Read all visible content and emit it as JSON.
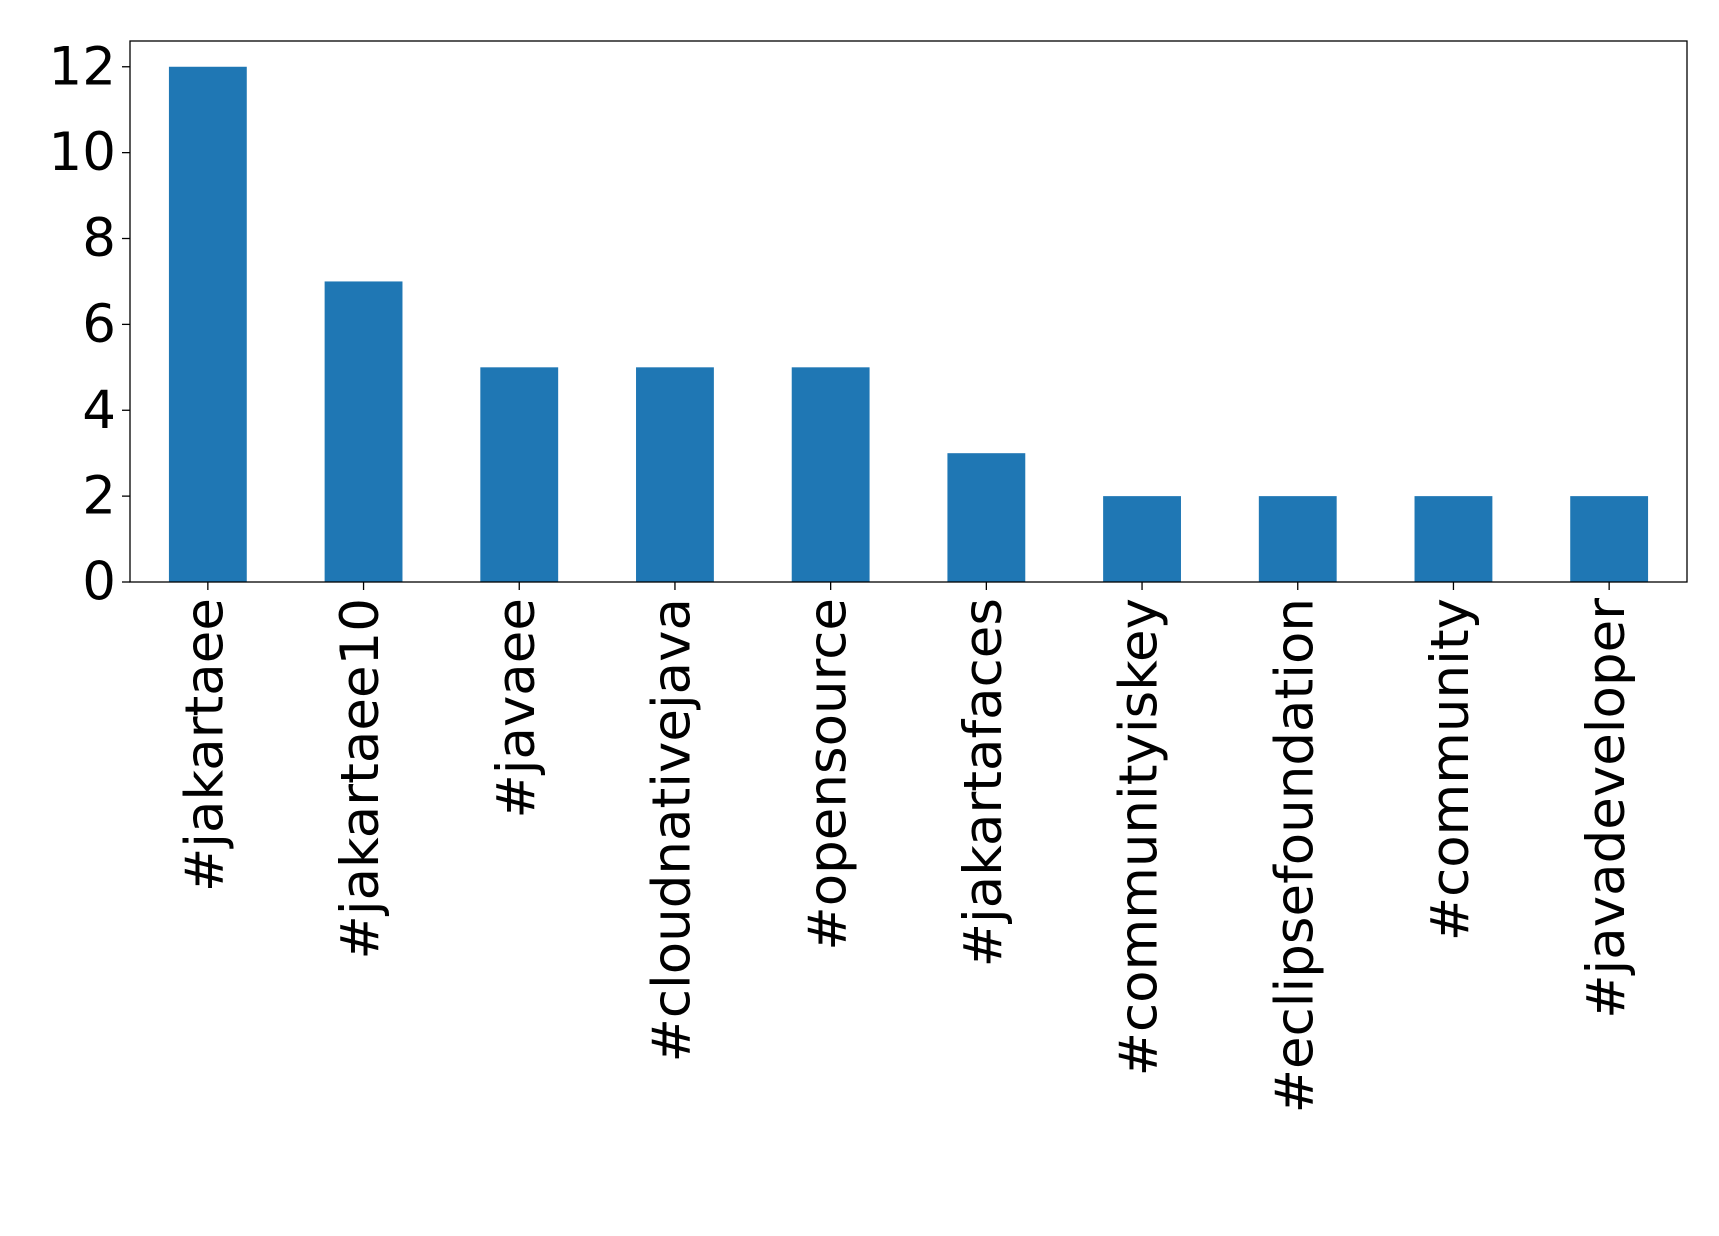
{
  "chart_data": {
    "type": "bar",
    "categories": [
      "#jakartaee",
      "#jakartaee10",
      "#javaee",
      "#cloudnativejava",
      "#opensource",
      "#jakartafaces",
      "#communityiskey",
      "#eclipsefoundation",
      "#community",
      "#javadeveloper"
    ],
    "values": [
      12,
      7,
      5,
      5,
      5,
      3,
      2,
      2,
      2,
      2
    ],
    "color": "#1f77b4",
    "ylim": [
      0,
      12.6
    ],
    "yticks": [
      0,
      2,
      4,
      6,
      8,
      10,
      12
    ],
    "grid": false
  }
}
